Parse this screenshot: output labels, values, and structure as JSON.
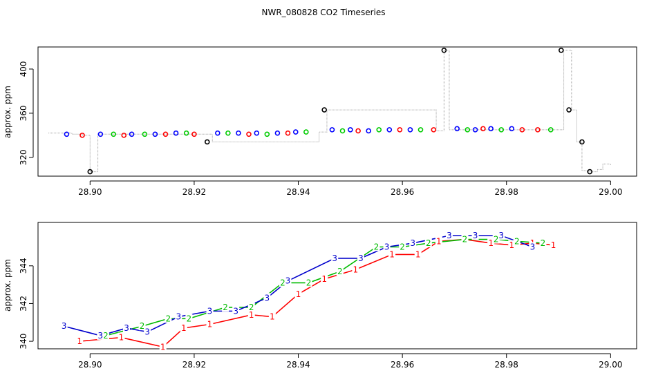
{
  "chart_data": [
    {
      "type": "scatter",
      "title": "NWR_080828  CO2 Timeseries",
      "xlabel": "",
      "ylabel": "approx. ppm",
      "xlim": [
        28.89,
        29.005
      ],
      "ylim": [
        303,
        420
      ],
      "xticks": [
        "28.90",
        "28.92",
        "28.94",
        "28.96",
        "28.98",
        "29.00"
      ],
      "xtick_values": [
        28.9,
        28.92,
        28.94,
        28.96,
        28.98,
        29.0
      ],
      "yticks": [
        "320",
        "360",
        "400"
      ],
      "ytick_values": [
        320,
        360,
        400
      ],
      "grid": false,
      "trace": {
        "name": "",
        "color": "#a0a0a0",
        "x": [
          28.892,
          28.8965,
          28.8985,
          28.9,
          28.9015,
          28.922,
          28.9235,
          28.944,
          28.9455,
          28.9665,
          28.968,
          28.969,
          28.9895,
          28.991,
          28.9925,
          28.9935,
          28.9945,
          28.9955,
          28.9975,
          28.9985,
          29.0
        ],
        "y": [
          342,
          341,
          340,
          307,
          341,
          341,
          334,
          343,
          363,
          344,
          417,
          345,
          345,
          417,
          363,
          334,
          308,
          307,
          309,
          314,
          313
        ]
      },
      "series": [
        {
          "name": "",
          "color": "#0000ff",
          "x": [
            28.8955,
            28.902,
            28.908,
            28.9125,
            28.9165,
            28.9245,
            28.9285,
            28.932,
            28.936,
            28.9395,
            28.9465,
            28.95,
            28.9535,
            28.9575,
            28.9615,
            28.9705,
            28.974,
            28.977,
            28.981
          ],
          "y": [
            341,
            341,
            341,
            341,
            342,
            342,
            342,
            342,
            342,
            343,
            345,
            345,
            344,
            345,
            345,
            346,
            345,
            346,
            346
          ]
        },
        {
          "name": "",
          "color": "#00cc00",
          "x": [
            28.9045,
            28.9105,
            28.9185,
            28.9265,
            28.934,
            28.9415,
            28.9485,
            28.9555,
            28.9635,
            28.9725,
            28.979,
            28.9885
          ],
          "y": [
            341,
            341,
            342,
            342,
            341,
            343,
            344,
            345,
            345,
            345,
            345,
            345
          ]
        },
        {
          "name": "",
          "color": "#ff0000",
          "x": [
            28.8985,
            28.9065,
            28.9145,
            28.92,
            28.9305,
            28.938,
            28.9515,
            28.9595,
            28.966,
            28.9755,
            28.983,
            28.986
          ],
          "y": [
            340,
            340,
            341,
            341,
            341,
            342,
            344,
            345,
            345,
            346,
            345,
            345
          ]
        },
        {
          "name": "",
          "color": "#000000",
          "x": [
            28.9,
            28.9225,
            28.945,
            28.968,
            28.9905,
            28.992,
            28.9945,
            28.996
          ],
          "y": [
            307,
            334,
            363,
            417,
            417,
            363,
            334,
            307
          ]
        }
      ]
    },
    {
      "type": "line",
      "title": "",
      "xlabel": "",
      "ylabel": "approx. ppm",
      "xlim": [
        28.89,
        29.005
      ],
      "ylim": [
        339.6,
        346.3
      ],
      "xticks": [
        "28.90",
        "28.92",
        "28.94",
        "28.96",
        "28.98",
        "29.00"
      ],
      "xtick_values": [
        28.9,
        28.92,
        28.94,
        28.96,
        28.98,
        29.0
      ],
      "yticks": [
        "340",
        "342",
        "344"
      ],
      "ytick_values": [
        340,
        342,
        344
      ],
      "grid": false,
      "series": [
        {
          "name": "1",
          "color": "#ff0000",
          "x": [
            28.898,
            28.906,
            28.914,
            28.918,
            28.923,
            28.931,
            28.935,
            28.94,
            28.945,
            28.951,
            28.958,
            28.963,
            28.967,
            28.972,
            28.977,
            28.981,
            28.985,
            28.989
          ],
          "y": [
            340.0,
            340.2,
            339.7,
            340.7,
            340.9,
            341.4,
            341.3,
            342.5,
            343.3,
            343.8,
            344.6,
            344.6,
            345.3,
            345.4,
            345.2,
            345.1,
            345.2,
            345.1
          ]
        },
        {
          "name": "2",
          "color": "#00bb00",
          "x": [
            28.903,
            28.91,
            28.915,
            28.919,
            28.926,
            28.931,
            28.937,
            28.942,
            28.948,
            28.955,
            28.96,
            28.965,
            28.972,
            28.978,
            28.982,
            28.987
          ],
          "y": [
            340.3,
            340.8,
            341.2,
            341.2,
            341.8,
            341.8,
            343.1,
            343.1,
            343.7,
            345.0,
            345.0,
            345.2,
            345.4,
            345.4,
            345.3,
            345.2
          ]
        },
        {
          "name": "3",
          "color": "#0000cc",
          "x": [
            28.895,
            28.902,
            28.907,
            28.911,
            28.917,
            28.923,
            28.928,
            28.934,
            28.938,
            28.947,
            28.952,
            28.957,
            28.962,
            28.969,
            28.974,
            28.979,
            28.985
          ],
          "y": [
            340.8,
            340.3,
            340.7,
            340.5,
            341.3,
            341.6,
            341.6,
            342.3,
            343.2,
            344.4,
            344.4,
            345.0,
            345.2,
            345.6,
            345.6,
            345.6,
            345.0
          ]
        }
      ]
    }
  ]
}
